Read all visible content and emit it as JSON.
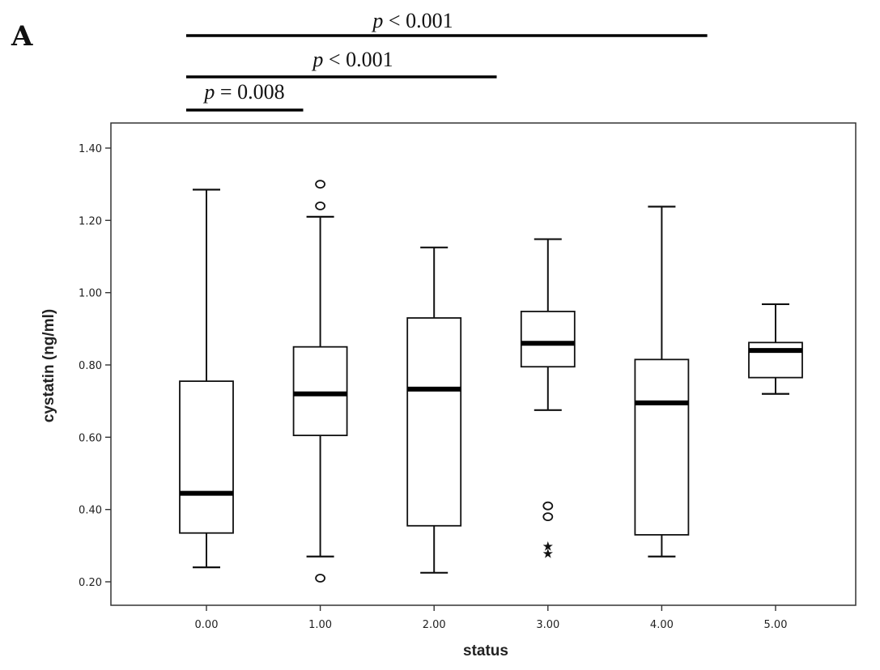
{
  "panel_label": "A",
  "significance": [
    {
      "from": 0,
      "to": 4.4,
      "p_symbol": "p",
      "p_text": " < 0.001"
    },
    {
      "from": 0,
      "to": 2.55,
      "p_symbol": "p",
      "p_text": " < 0.001"
    },
    {
      "from": 0,
      "to": 0.85,
      "p_symbol": "p",
      "p_text": " = 0.008"
    }
  ],
  "chart_data": {
    "type": "box",
    "xlabel": "status",
    "ylabel": "cystatin (ng/ml)",
    "ylim": [
      0.16,
      1.47
    ],
    "yticks": [
      "0.20",
      "0.40",
      "0.60",
      "0.80",
      "1.00",
      "1.20",
      "1.40"
    ],
    "categories": [
      "0.00",
      "1.00",
      "2.00",
      "3.00",
      "4.00",
      "5.00"
    ],
    "boxes": [
      {
        "category": "0.00",
        "whisker_low": 0.24,
        "q1": 0.335,
        "median": 0.445,
        "q3": 0.755,
        "whisker_high": 1.285,
        "outliers": [],
        "extremes": []
      },
      {
        "category": "1.00",
        "whisker_low": 0.27,
        "q1": 0.605,
        "median": 0.72,
        "q3": 0.85,
        "whisker_high": 1.21,
        "outliers": [
          0.21,
          1.24,
          1.3
        ],
        "extremes": []
      },
      {
        "category": "2.00",
        "whisker_low": 0.225,
        "q1": 0.355,
        "median": 0.733,
        "q3": 0.93,
        "whisker_high": 1.125,
        "outliers": [],
        "extremes": []
      },
      {
        "category": "3.00",
        "whisker_low": 0.675,
        "q1": 0.795,
        "median": 0.86,
        "q3": 0.948,
        "whisker_high": 1.148,
        "outliers": [
          0.38,
          0.41
        ],
        "extremes": [
          0.28,
          0.3
        ]
      },
      {
        "category": "4.00",
        "whisker_low": 0.27,
        "q1": 0.33,
        "median": 0.695,
        "q3": 0.815,
        "whisker_high": 1.238,
        "outliers": [],
        "extremes": []
      },
      {
        "category": "5.00",
        "whisker_low": 0.72,
        "q1": 0.765,
        "median": 0.84,
        "q3": 0.862,
        "whisker_high": 0.968,
        "outliers": [],
        "extremes": []
      }
    ],
    "legend": "none",
    "grid": false
  }
}
